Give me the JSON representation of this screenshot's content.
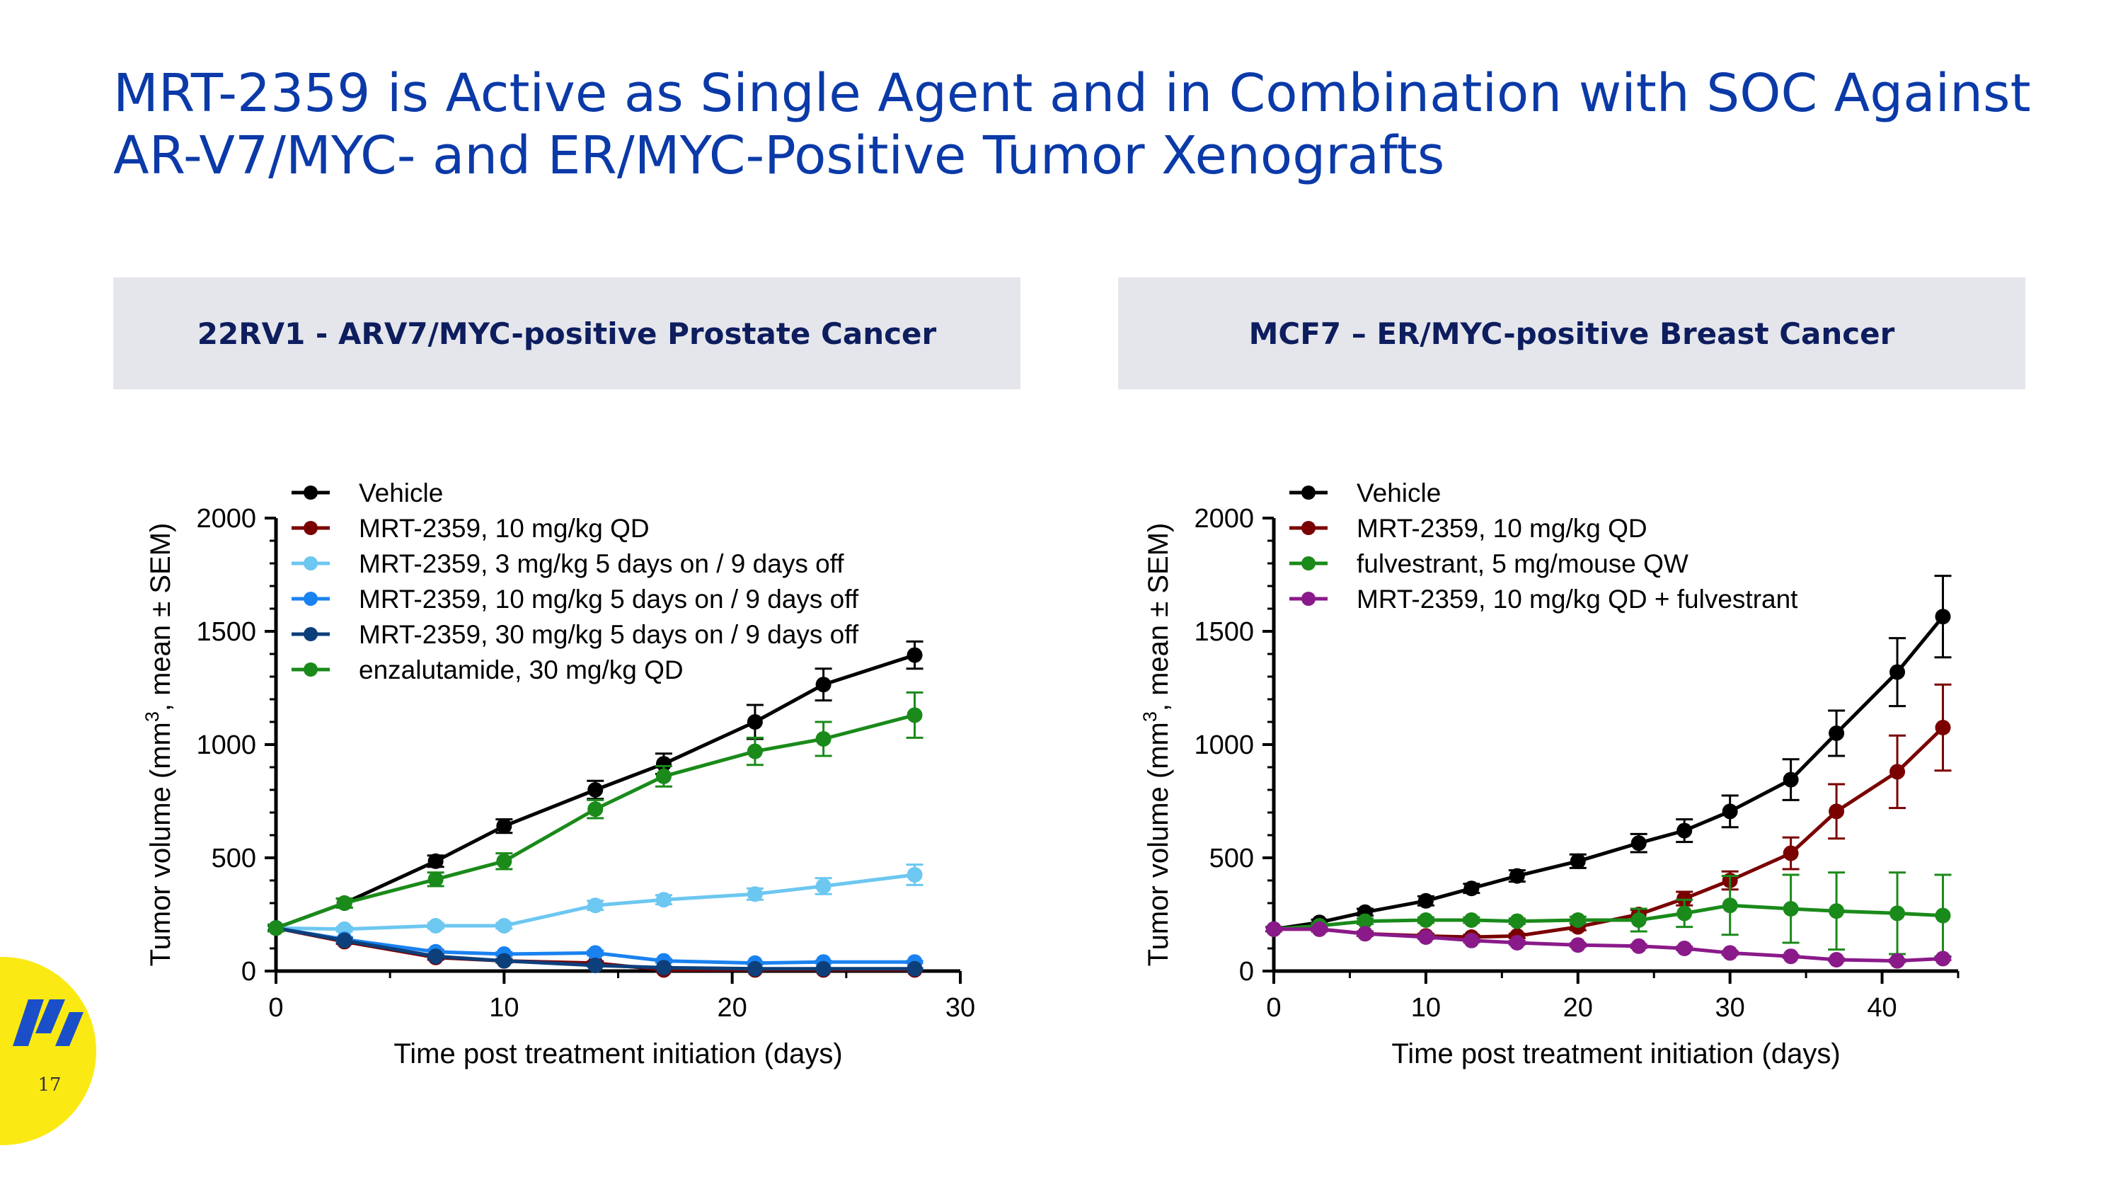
{
  "slide": {
    "title_line1": "MRT-2359 is Active as Single Agent and in Combination with SOC Against",
    "title_line2": "AR-V7/MYC- and ER/MYC-Positive Tumor Xenografts",
    "page_number": "17",
    "logo_color": "#fbe914",
    "title_color": "#0b3aa8"
  },
  "panels": {
    "left_header": "22RV1 - ARV7/MYC-positive Prostate Cancer",
    "right_header": "MCF7 – ER/MYC-positive Breast Cancer"
  },
  "chart_data": [
    {
      "type": "line",
      "title": "22RV1 - ARV7/MYC-positive Prostate Cancer",
      "xlabel": "Time post treatment initiation (days)",
      "ylabel_prefix": "Tumor volume (mm",
      "ylabel_sup": "3",
      "ylabel_suffix": ", mean ± SEM)",
      "xlim": [
        0,
        30
      ],
      "ylim": [
        0,
        2000
      ],
      "xticks": [
        0,
        10,
        20,
        30
      ],
      "yticks": [
        0,
        500,
        1000,
        1500,
        2000
      ],
      "legend_position": "top-left",
      "series": [
        {
          "name": "Vehicle",
          "color": "#000000",
          "x": [
            0,
            3,
            7,
            10,
            14,
            17,
            21,
            24,
            28
          ],
          "y": [
            190,
            300,
            485,
            640,
            800,
            915,
            1100,
            1265,
            1395
          ],
          "err": [
            15,
            20,
            25,
            30,
            40,
            45,
            75,
            70,
            60
          ]
        },
        {
          "name": "MRT-2359, 10 mg/kg QD",
          "color": "#7a0000",
          "x": [
            0,
            3,
            7,
            10,
            14,
            17,
            21,
            24,
            28
          ],
          "y": [
            190,
            130,
            60,
            45,
            35,
            5,
            5,
            5,
            5
          ],
          "err": [
            10,
            10,
            10,
            8,
            8,
            3,
            3,
            3,
            3
          ]
        },
        {
          "name": "MRT-2359, 3 mg/kg 5 days on / 9 days off",
          "color": "#6cc7f1",
          "x": [
            0,
            3,
            7,
            10,
            14,
            17,
            21,
            24,
            28
          ],
          "y": [
            190,
            185,
            200,
            200,
            290,
            315,
            340,
            375,
            425
          ],
          "err": [
            10,
            10,
            12,
            12,
            20,
            20,
            25,
            35,
            45
          ]
        },
        {
          "name": "MRT-2359, 10 mg/kg 5 days on / 9 days off",
          "color": "#1a82f0",
          "x": [
            0,
            3,
            7,
            10,
            14,
            17,
            21,
            24,
            28
          ],
          "y": [
            190,
            140,
            85,
            75,
            80,
            45,
            35,
            40,
            40
          ],
          "err": [
            10,
            10,
            10,
            8,
            10,
            8,
            5,
            5,
            5
          ]
        },
        {
          "name": "MRT-2359, 30 mg/kg 5 days on / 9 days off",
          "color": "#0d3f7a",
          "x": [
            0,
            3,
            7,
            10,
            14,
            17,
            21,
            24,
            28
          ],
          "y": [
            190,
            135,
            65,
            45,
            25,
            15,
            10,
            10,
            10
          ],
          "err": [
            10,
            10,
            8,
            6,
            5,
            4,
            3,
            3,
            3
          ]
        },
        {
          "name": "enzalutamide, 30 mg/kg QD",
          "color": "#1a8a1a",
          "x": [
            0,
            3,
            7,
            10,
            14,
            17,
            21,
            24,
            28
          ],
          "y": [
            190,
            300,
            405,
            485,
            715,
            860,
            970,
            1025,
            1130
          ],
          "err": [
            15,
            20,
            30,
            35,
            40,
            45,
            60,
            75,
            100
          ]
        }
      ]
    },
    {
      "type": "line",
      "title": "MCF7 – ER/MYC-positive Breast Cancer",
      "xlabel": "Time post treatment initiation (days)",
      "ylabel_prefix": "Tumor volume (mm",
      "ylabel_sup": "3",
      "ylabel_suffix": ", mean ± SEM)",
      "xlim": [
        0,
        45
      ],
      "ylim": [
        0,
        2000
      ],
      "xticks": [
        0,
        10,
        20,
        30,
        40
      ],
      "yticks": [
        0,
        500,
        1000,
        1500,
        2000
      ],
      "legend_position": "top-left",
      "series": [
        {
          "name": "Vehicle",
          "color": "#000000",
          "x": [
            0,
            3,
            6,
            10,
            13,
            16,
            20,
            24,
            27,
            30,
            34,
            37,
            41,
            44
          ],
          "y": [
            185,
            215,
            260,
            310,
            365,
            420,
            485,
            565,
            620,
            705,
            845,
            1050,
            1320,
            1565
          ],
          "err": [
            10,
            12,
            15,
            20,
            20,
            25,
            30,
            40,
            50,
            70,
            90,
            100,
            150,
            180
          ]
        },
        {
          "name": "MRT-2359, 10 mg/kg QD",
          "color": "#7a0000",
          "x": [
            0,
            3,
            6,
            10,
            13,
            16,
            20,
            24,
            27,
            30,
            34,
            37,
            41,
            44
          ],
          "y": [
            185,
            185,
            165,
            155,
            150,
            155,
            195,
            250,
            320,
            400,
            520,
            705,
            880,
            1075
          ],
          "err": [
            10,
            10,
            10,
            10,
            10,
            10,
            15,
            20,
            30,
            40,
            70,
            120,
            160,
            190
          ]
        },
        {
          "name": "fulvestrant, 5 mg/mouse QW",
          "color": "#1a8a1a",
          "x": [
            0,
            3,
            6,
            10,
            13,
            16,
            20,
            24,
            27,
            30,
            34,
            37,
            41,
            44
          ],
          "y": [
            185,
            200,
            220,
            225,
            225,
            220,
            225,
            225,
            255,
            290,
            275,
            265,
            255,
            245
          ],
          "err": [
            10,
            10,
            12,
            12,
            12,
            12,
            15,
            50,
            60,
            130,
            150,
            170,
            180,
            180
          ]
        },
        {
          "name": "MRT-2359, 10 mg/kg QD + fulvestrant",
          "color": "#8a1a8a",
          "x": [
            0,
            3,
            6,
            10,
            13,
            16,
            20,
            24,
            27,
            30,
            34,
            37,
            41,
            44
          ],
          "y": [
            185,
            185,
            165,
            150,
            135,
            125,
            115,
            110,
            100,
            80,
            65,
            50,
            45,
            55
          ],
          "err": [
            8,
            8,
            8,
            8,
            8,
            8,
            8,
            8,
            8,
            8,
            6,
            6,
            6,
            6
          ]
        }
      ]
    }
  ]
}
